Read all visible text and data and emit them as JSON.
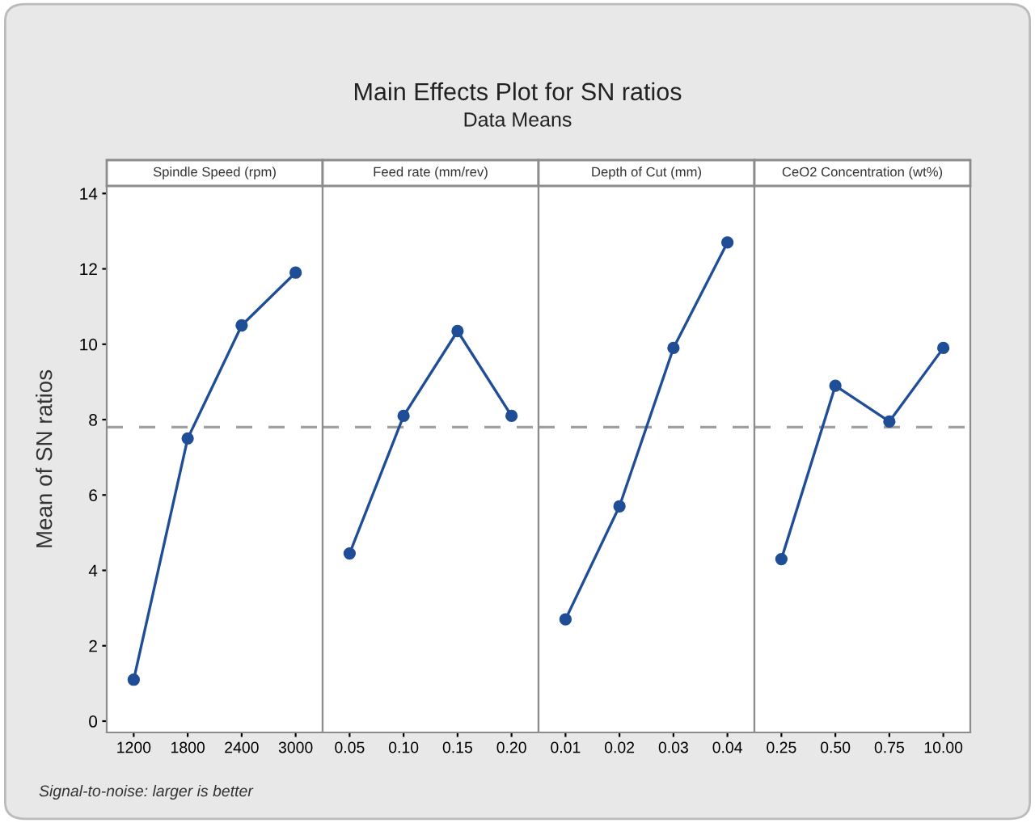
{
  "chart_data": [
    {
      "type": "line",
      "title": "Spindle Speed (rpm)",
      "categories": [
        "1200",
        "1800",
        "2400",
        "3000"
      ],
      "series": [
        {
          "color": "#1f4e96",
          "values": [
            1.1,
            7.5,
            10.5,
            11.9
          ]
        }
      ],
      "ylim": [
        -0.3,
        14.2
      ],
      "yticks": [
        0,
        2,
        4,
        6,
        8,
        10,
        12,
        14
      ],
      "ylabel": "Mean of SN ratios",
      "ref_lines": [
        {
          "axis": "y",
          "value": 7.8,
          "color": "#a0a0a0",
          "line_style": "dashed"
        }
      ],
      "marker": "circle",
      "line_style": "solid",
      "grid": false,
      "legend": false,
      "annotations": [
        "Main Effects Plot for SN ratios",
        "Data Means",
        "Signal-to-noise: larger is better"
      ]
    },
    {
      "type": "line",
      "title": "Feed rate (mm/rev)",
      "categories": [
        "0.05",
        "0.10",
        "0.15",
        "0.20"
      ],
      "series": [
        {
          "color": "#1f4e96",
          "values": [
            4.45,
            8.1,
            10.35,
            8.1
          ]
        }
      ],
      "ylim": [
        -0.3,
        14.2
      ],
      "tick_labels": "x",
      "ref_lines": [
        {
          "axis": "y",
          "value": 7.8,
          "color": "#a0a0a0",
          "line_style": "dashed"
        }
      ],
      "marker": "circle",
      "line_style": "solid",
      "grid": false,
      "legend": false
    },
    {
      "type": "line",
      "title": "Depth of Cut (mm)",
      "categories": [
        "0.01",
        "0.02",
        "0.03",
        "0.04"
      ],
      "series": [
        {
          "color": "#1f4e96",
          "values": [
            2.7,
            5.7,
            9.9,
            12.7
          ]
        }
      ],
      "ylim": [
        -0.3,
        14.2
      ],
      "tick_labels": "x",
      "ref_lines": [
        {
          "axis": "y",
          "value": 7.8,
          "color": "#a0a0a0",
          "line_style": "dashed"
        }
      ],
      "marker": "circle",
      "line_style": "solid",
      "grid": false,
      "legend": false
    },
    {
      "type": "line",
      "title": "CeO2 Concentration (wt%)",
      "categories": [
        "0.25",
        "0.50",
        "0.75",
        "10.00"
      ],
      "series": [
        {
          "color": "#1f4e96",
          "values": [
            4.3,
            8.9,
            7.95,
            9.9
          ]
        }
      ],
      "ylim": [
        -0.3,
        14.2
      ],
      "tick_labels": "x",
      "ref_lines": [
        {
          "axis": "y",
          "value": 7.8,
          "color": "#a0a0a0",
          "line_style": "dashed"
        }
      ],
      "marker": "circle",
      "line_style": "solid",
      "grid": false,
      "legend": false
    }
  ]
}
